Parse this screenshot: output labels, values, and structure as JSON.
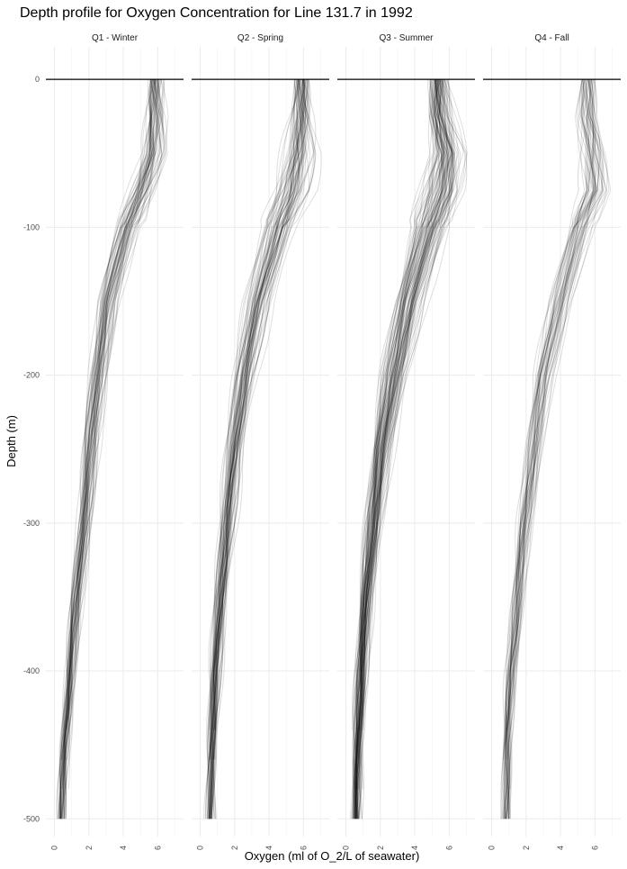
{
  "chart_data": {
    "type": "line",
    "title": "Depth profile for Oxygen Concentration for Line 131.7 in 1992",
    "xlabel": "Oxygen (ml of O_2/L of seawater)",
    "ylabel": "Depth (m)",
    "xlim": [
      -0.5,
      7.5
    ],
    "ylim": [
      -512,
      22
    ],
    "x_ticks": [
      0,
      2,
      4,
      6
    ],
    "y_ticks": [
      0,
      -100,
      -200,
      -300,
      -400,
      -500
    ],
    "x_tick_labels": [
      "0",
      "2",
      "4",
      "6"
    ],
    "y_tick_labels": [
      "0",
      "-100",
      "-200",
      "-300",
      "-400",
      "-500"
    ],
    "reference_line_y": 0,
    "grid": true,
    "line_color": "#000000",
    "panels": [
      {
        "name": "Q1 - Winter",
        "profile_count": 60,
        "representative_profile": {
          "depth": [
            0,
            -25,
            -50,
            -75,
            -100,
            -150,
            -200,
            -250,
            -300,
            -350,
            -400,
            -450,
            -500
          ],
          "oxygen": [
            5.9,
            5.9,
            5.7,
            5.0,
            4.2,
            3.1,
            2.5,
            2.1,
            1.7,
            1.3,
            0.9,
            0.6,
            0.4
          ]
        },
        "spread": [
          0.2,
          0.6,
          0.9,
          1.0,
          1.0,
          0.9,
          0.8,
          0.7,
          0.6,
          0.5,
          0.4,
          0.3,
          0.3
        ]
      },
      {
        "name": "Q2 - Spring",
        "profile_count": 70,
        "representative_profile": {
          "depth": [
            0,
            -25,
            -50,
            -75,
            -100,
            -150,
            -200,
            -250,
            -300,
            -350,
            -400,
            -450,
            -500
          ],
          "oxygen": [
            5.9,
            5.9,
            5.8,
            5.4,
            4.6,
            3.4,
            2.6,
            2.0,
            1.6,
            1.2,
            0.9,
            0.7,
            0.6
          ]
        },
        "spread": [
          0.3,
          0.7,
          1.2,
          1.4,
          1.3,
          1.1,
          0.9,
          0.7,
          0.6,
          0.5,
          0.4,
          0.3,
          0.3
        ]
      },
      {
        "name": "Q3 - Summer",
        "profile_count": 90,
        "representative_profile": {
          "depth": [
            0,
            -25,
            -50,
            -75,
            -100,
            -150,
            -200,
            -250,
            -300,
            -350,
            -400,
            -450,
            -500
          ],
          "oxygen": [
            5.4,
            5.5,
            5.9,
            5.6,
            4.9,
            3.7,
            2.8,
            2.1,
            1.6,
            1.2,
            0.9,
            0.7,
            0.6
          ]
        },
        "spread": [
          0.5,
          0.9,
          1.2,
          1.4,
          1.4,
          1.2,
          1.0,
          0.8,
          0.6,
          0.5,
          0.4,
          0.3,
          0.3
        ]
      },
      {
        "name": "Q4 - Fall",
        "profile_count": 45,
        "representative_profile": {
          "depth": [
            0,
            -25,
            -50,
            -75,
            -100,
            -150,
            -200,
            -250,
            -300,
            -350,
            -400,
            -450,
            -500
          ],
          "oxygen": [
            5.6,
            5.5,
            5.8,
            6.0,
            5.1,
            3.9,
            3.0,
            2.4,
            1.9,
            1.5,
            1.1,
            0.9,
            0.8
          ]
        },
        "spread": [
          0.3,
          0.6,
          0.9,
          1.0,
          1.1,
          1.0,
          0.9,
          0.7,
          0.6,
          0.5,
          0.4,
          0.3,
          0.3
        ]
      }
    ]
  }
}
